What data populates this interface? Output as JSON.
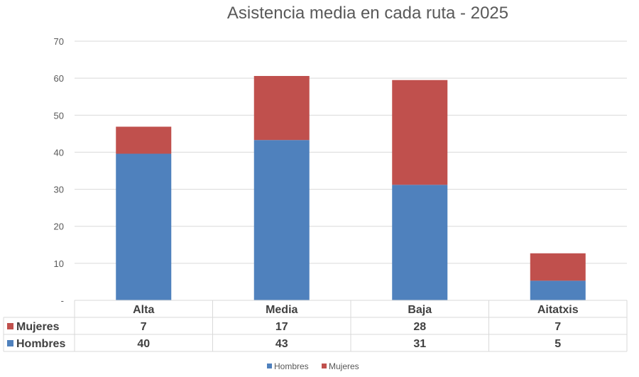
{
  "chart_data": {
    "type": "bar",
    "stacked": true,
    "title": "Asistencia media en cada ruta - 2025",
    "categories": [
      "Alta",
      "Media",
      "Baja",
      "Aitatxis"
    ],
    "series": [
      {
        "name": "Hombres",
        "color": "#4f81bd",
        "values": [
          39.6,
          43.3,
          31.2,
          5.3
        ],
        "table_labels": [
          "40",
          "43",
          "31",
          "5"
        ]
      },
      {
        "name": "Mujeres",
        "color": "#c0504d",
        "values": [
          7.3,
          17.3,
          28.3,
          7.4
        ],
        "table_labels": [
          "7",
          "17",
          "28",
          "7"
        ]
      }
    ],
    "ylim": [
      0,
      70
    ],
    "yticks": [
      0,
      10,
      20,
      30,
      40,
      50,
      60,
      70
    ],
    "ytick_labels": [
      "-",
      "10",
      "20",
      "30",
      "40",
      "50",
      "60",
      "70"
    ],
    "grid": true,
    "data_table": true,
    "legend": "bottom-center",
    "xlabel": "",
    "ylabel": ""
  }
}
